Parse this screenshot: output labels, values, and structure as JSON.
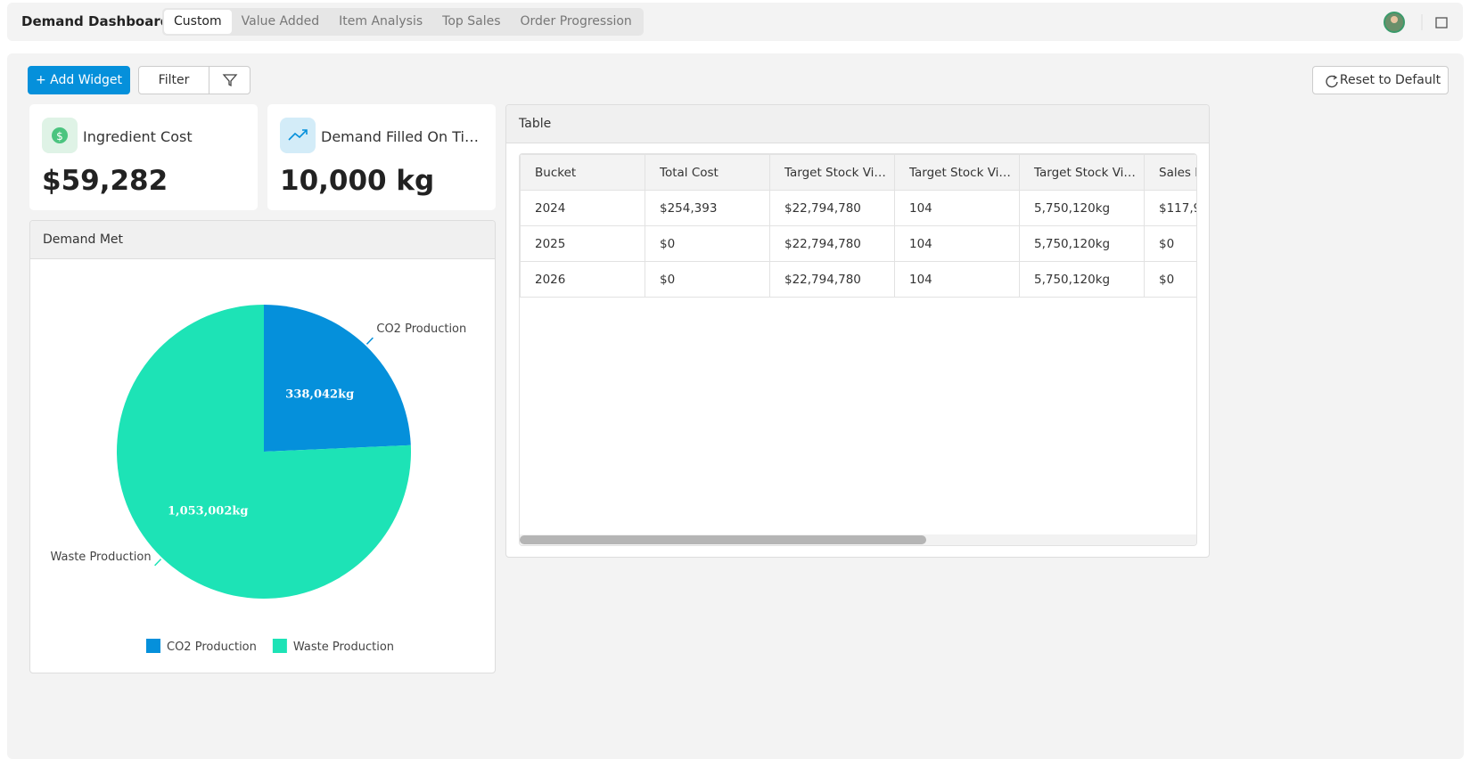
{
  "header": {
    "title": "Demand Dashboard",
    "tabs": [
      "Custom",
      "Value Added",
      "Item Analysis",
      "Top Sales",
      "Order Progression"
    ]
  },
  "toolbar": {
    "add_widget": "+ Add Widget",
    "filter": "Filter",
    "reset": "Reset to Default"
  },
  "kpis": [
    {
      "title": "Ingredient Cost",
      "value": "$59,282"
    },
    {
      "title": "Demand Filled On Ti…",
      "value": "10,000 kg"
    }
  ],
  "chart_data": {
    "type": "pie",
    "title": "Demand Met",
    "categories": [
      "CO2 Production",
      "Waste Production"
    ],
    "values": [
      338042,
      1053002
    ],
    "value_labels": [
      "338,042kg",
      "1,053,002kg"
    ],
    "colors": [
      "#0590db",
      "#1de3b6"
    ]
  },
  "table": {
    "title": "Table",
    "columns": [
      "Bucket",
      "Total Cost",
      "Target Stock Vi…",
      "Target Stock Vi…",
      "Target Stock Vi…",
      "Sales F"
    ],
    "rows": [
      [
        "2024",
        "$254,393",
        "$22,794,780",
        "104",
        "5,750,120kg",
        "$117,9"
      ],
      [
        "2025",
        "$0",
        "$22,794,780",
        "104",
        "5,750,120kg",
        "$0"
      ],
      [
        "2026",
        "$0",
        "$22,794,780",
        "104",
        "5,750,120kg",
        "$0"
      ]
    ]
  }
}
